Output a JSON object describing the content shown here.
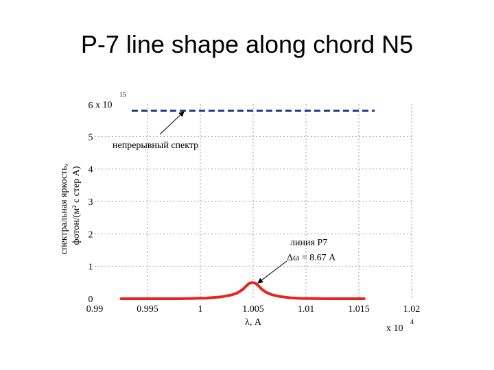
{
  "slide_title": "P-7 line shape along chord N5",
  "chart_data": {
    "type": "line",
    "title": "",
    "xlabel": "λ, A",
    "ylabel_line1": "спектральная яркость,",
    "ylabel_line2": "фотон/(м² с стер А)",
    "x_multiplier": "x 10",
    "x_multiplier_exp": "4",
    "y_multiplier": "x 10",
    "y_multiplier_exp": "15",
    "xlim": [
      0.99,
      1.02
    ],
    "ylim": [
      0,
      6
    ],
    "x_ticks": [
      "0.99",
      "0.995",
      "1",
      "1.005",
      "1.01",
      "1.015",
      "1.02"
    ],
    "x_tick_values": [
      0.99,
      0.995,
      1.0,
      1.005,
      1.01,
      1.015,
      1.02
    ],
    "y_ticks": [
      "0",
      "1",
      "2",
      "3",
      "4",
      "5",
      "6"
    ],
    "y_tick_values": [
      0,
      1,
      2,
      3,
      4,
      5,
      6
    ],
    "grid": true,
    "series": [
      {
        "name": "линия P7",
        "color": "#e8231b",
        "style": "solid",
        "x": [
          0.9925,
          0.998,
          1.0005,
          1.002,
          1.003,
          1.0035,
          1.004,
          1.0043,
          1.0046,
          1.0049,
          1.0052,
          1.0055,
          1.0058,
          1.0062,
          1.0068,
          1.0075,
          1.0085,
          1.0095,
          1.012,
          1.0155
        ],
        "y": [
          0.0,
          0.0,
          0.02,
          0.06,
          0.12,
          0.18,
          0.28,
          0.38,
          0.47,
          0.5,
          0.48,
          0.4,
          0.3,
          0.2,
          0.12,
          0.07,
          0.03,
          0.01,
          0.0,
          0.0
        ]
      },
      {
        "name": "непрерывный спектр",
        "color": "#1f3a8f",
        "style": "dashed",
        "x": [
          0.9935,
          1.0165
        ],
        "y": [
          5.8,
          5.8
        ]
      }
    ],
    "annotations": [
      {
        "name": "continuum-label",
        "text": "непрерывный спектр"
      },
      {
        "name": "line-label-1",
        "text": "линия P7"
      },
      {
        "name": "line-label-2",
        "text": "Δω = 8.67 A"
      }
    ]
  }
}
